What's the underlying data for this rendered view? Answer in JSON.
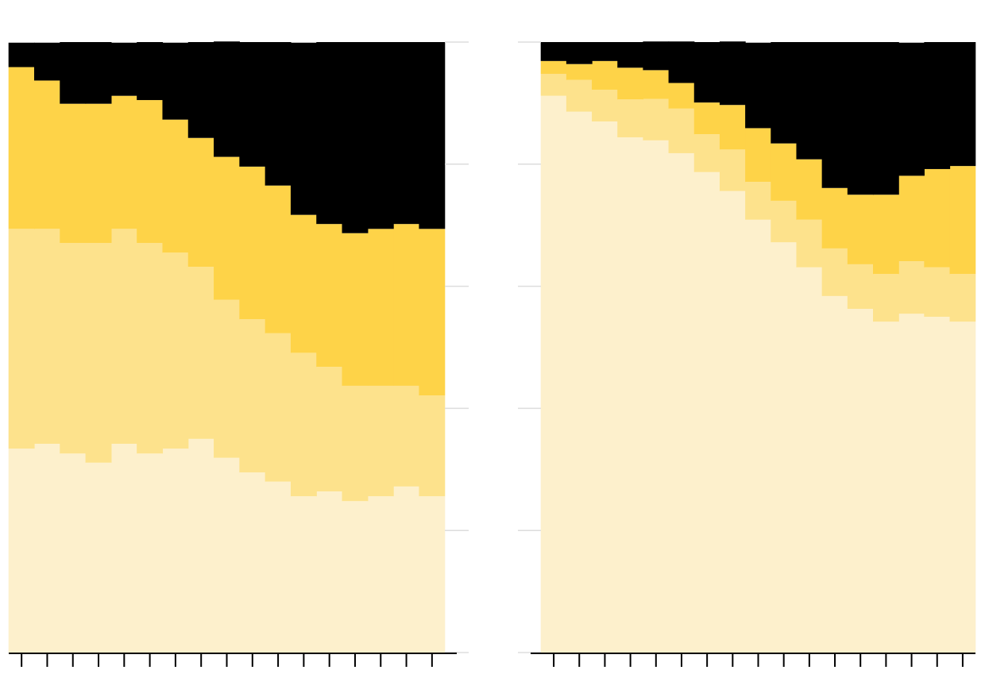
{
  "chart_data": [
    {
      "type": "area",
      "stacked": true,
      "step": true,
      "yaxis_side": "right",
      "categories": [
        null,
        null,
        null,
        null,
        null,
        null,
        null,
        null,
        null,
        null,
        null,
        null,
        null,
        null,
        null,
        null,
        null
      ],
      "ylim": [
        0,
        100
      ],
      "yticks": [
        0,
        20,
        40,
        60,
        80,
        100
      ],
      "series": [
        {
          "color": "#fdf0cc",
          "values": [
            33.4,
            34.2,
            32.6,
            31.1,
            34.2,
            32.6,
            33.4,
            35.0,
            31.9,
            29.5,
            28.0,
            25.6,
            26.4,
            24.8,
            25.6,
            27.2,
            25.6
          ]
        },
        {
          "color": "#fde28c",
          "values": [
            36.0,
            35.2,
            34.5,
            36.0,
            35.2,
            34.5,
            32.1,
            28.2,
            25.9,
            25.1,
            24.3,
            23.5,
            20.4,
            18.9,
            18.1,
            16.5,
            16.5
          ]
        },
        {
          "color": "#fed348",
          "values": [
            26.5,
            24.3,
            22.8,
            22.8,
            21.8,
            23.4,
            21.8,
            21.1,
            23.4,
            25.0,
            24.2,
            22.6,
            23.4,
            25.0,
            25.7,
            26.5,
            27.3
          ]
        },
        {
          "color": "#000000",
          "values": [
            4.0,
            6.2,
            10.1,
            10.1,
            8.7,
            9.5,
            12.6,
            15.7,
            18.9,
            20.4,
            23.5,
            28.2,
            29.8,
            31.3,
            30.6,
            29.8,
            30.6
          ]
        }
      ]
    },
    {
      "type": "area",
      "stacked": true,
      "step": true,
      "yaxis_side": "left",
      "categories": [
        null,
        null,
        null,
        null,
        null,
        null,
        null,
        null,
        null,
        null,
        null,
        null,
        null,
        null,
        null,
        null,
        null
      ],
      "ylim": [
        0,
        100
      ],
      "yticks": [
        0,
        20,
        40,
        60,
        80,
        100
      ],
      "series": [
        {
          "color": "#fdf0cc",
          "values": [
            91.2,
            88.6,
            87.0,
            84.4,
            83.9,
            81.8,
            78.7,
            75.6,
            70.9,
            67.2,
            63.1,
            58.4,
            56.3,
            54.2,
            55.5,
            55.0,
            54.2
          ]
        },
        {
          "color": "#fde28c",
          "values": [
            3.6,
            5.2,
            5.2,
            6.2,
            6.8,
            7.3,
            6.2,
            6.8,
            6.2,
            6.8,
            7.8,
            7.8,
            7.3,
            7.8,
            8.6,
            8.1,
            7.8
          ]
        },
        {
          "color": "#fed348",
          "values": [
            2.1,
            2.6,
            4.7,
            5.2,
            4.7,
            4.2,
            5.2,
            7.3,
            8.8,
            9.4,
            9.9,
            9.9,
            11.4,
            13.0,
            14.0,
            16.1,
            17.7
          ]
        },
        {
          "color": "#000000",
          "values": [
            3.1,
            3.6,
            3.1,
            4.2,
            4.7,
            6.8,
            9.9,
            10.4,
            14.0,
            16.6,
            19.2,
            23.9,
            25.0,
            25.0,
            21.8,
            20.8,
            20.3
          ]
        }
      ]
    }
  ]
}
